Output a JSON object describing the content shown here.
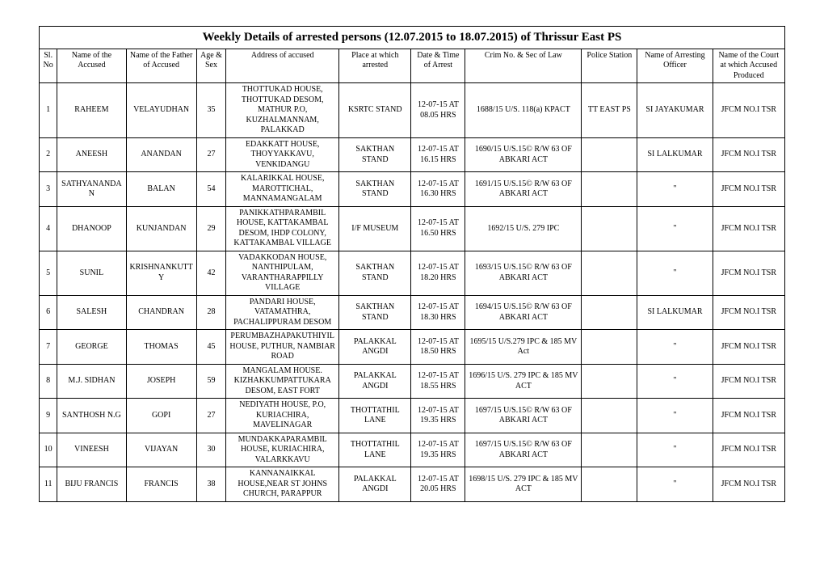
{
  "title": "Weekly Details of  arrested persons  (12.07.2015 to 18.07.2015) of Thrissur East PS",
  "columns": [
    "Sl. No",
    "Name of the Accused",
    "Name of the Father of Accused",
    "Age & Sex",
    "Address of accused",
    "Place at which arrested",
    "Date & Time of Arrest",
    "Crim No. & Sec of Law",
    "Police Station",
    "Name of Arresting Officer",
    "Name of the Court at which Accused Produced"
  ],
  "rows": [
    {
      "sl": "1",
      "name": "RAHEEM",
      "father": "VELAYUDHAN",
      "age": "35",
      "addr": "THOTTUKAD HOUSE, THOTTUKAD DESOM, MATHUR P.O, KUZHALMANNAM, PALAKKAD",
      "place": "KSRTC STAND",
      "datetime": "12-07-15 AT 08.05 HRS",
      "crime": "1688/15 U/S. 118(a) KPACT",
      "ps": "TT EAST PS",
      "officer": "SI JAYAKUMAR",
      "court": "JFCM NO.I TSR"
    },
    {
      "sl": "2",
      "name": "ANEESH",
      "father": "ANANDAN",
      "age": "27",
      "addr": "EDAKKATT HOUSE, THOYYAKKAVU, VENKIDANGU",
      "place": "SAKTHAN STAND",
      "datetime": "12-07-15 AT 16.15 HRS",
      "crime": "1690/15 U/S.15© R/W 63 OF ABKARI ACT",
      "ps": "",
      "officer": "SI LALKUMAR",
      "court": "JFCM NO.I TSR"
    },
    {
      "sl": "3",
      "name": "SATHYANANDAN",
      "father": "BALAN",
      "age": "54",
      "addr": "KALARIKKAL HOUSE, MAROTTICHAL, MANNAMANGALAM",
      "place": "SAKTHAN STAND",
      "datetime": "12-07-15 AT 16.30 HRS",
      "crime": "1691/15 U/S.15© R/W 63 OF ABKARI ACT",
      "ps": "",
      "officer": "\"",
      "court": "JFCM NO.I TSR"
    },
    {
      "sl": "4",
      "name": "DHANOOP",
      "father": "KUNJANDAN",
      "age": "29",
      "addr": "PANIKKATHPARAMBIL HOUSE, KATTAKAMBAL DESOM, IHDP COLONY, KATTAKAMBAL VILLAGE",
      "place": "I/F MUSEUM",
      "datetime": "12-07-15 AT 16.50 HRS",
      "crime": "1692/15 U/S. 279 IPC",
      "ps": "",
      "officer": "\"",
      "court": "JFCM NO.I TSR"
    },
    {
      "sl": "5",
      "name": "SUNIL",
      "father": "KRISHNANKUTTY",
      "age": "42",
      "addr": "VADAKKODAN HOUSE, NANTHIPULAM, VARANTHARAPPILLY VILLAGE",
      "place": "SAKTHAN STAND",
      "datetime": "12-07-15 AT 18.20 HRS",
      "crime": "1693/15 U/S.15© R/W 63 OF ABKARI ACT",
      "ps": "",
      "officer": "\"",
      "court": "JFCM NO.I TSR"
    },
    {
      "sl": "6",
      "name": "SALESH",
      "father": "CHANDRAN",
      "age": "28",
      "addr": "PANDARI HOUSE, VATAMATHRA, PACHALIPPURAM DESOM",
      "place": "SAKTHAN STAND",
      "datetime": "12-07-15 AT 18.30 HRS",
      "crime": "1694/15 U/S.15© R/W 63 OF ABKARI ACT",
      "ps": "",
      "officer": "SI LALKUMAR",
      "court": "JFCM NO.I TSR"
    },
    {
      "sl": "7",
      "name": "GEORGE",
      "father": "THOMAS",
      "age": "45",
      "addr": "PERUMBAZHAPAKUTHIYIL HOUSE, PUTHUR, NAMBIAR ROAD",
      "place": "PALAKKAL ANGDI",
      "datetime": "12-07-15 AT 18.50 HRS",
      "crime": "1695/15 U/S.279 IPC & 185 MV Act",
      "ps": "",
      "officer": "\"",
      "court": "JFCM NO.I TSR"
    },
    {
      "sl": "8",
      "name": "M.J. SIDHAN",
      "father": "JOSEPH",
      "age": "59",
      "addr": "MANGALAM HOUSE. KIZHAKKUMPATTUKARA DESOM, EAST FORT",
      "place": "PALAKKAL ANGDI",
      "datetime": "12-07-15 AT 18.55 HRS",
      "crime": "1696/15 U/S. 279 IPC & 185 MV ACT",
      "ps": "",
      "officer": "\"",
      "court": "JFCM NO.I TSR"
    },
    {
      "sl": "9",
      "name": "SANTHOSH N.G",
      "father": "GOPI",
      "age": "27",
      "addr": "NEDIYATH HOUSE, P.O, KURIACHIRA, MAVELINAGAR",
      "place": "THOTTATHIL LANE",
      "datetime": "12-07-15 AT 19.35 HRS",
      "crime": "1697/15 U/S.15© R/W 63 OF ABKARI ACT",
      "ps": "",
      "officer": "\"",
      "court": "JFCM NO.I TSR"
    },
    {
      "sl": "10",
      "name": "VINEESH",
      "father": "VIJAYAN",
      "age": "30",
      "addr": "MUNDAKKAPARAMBIL HOUSE, KURIACHIRA, VALARKKAVU",
      "place": "THOTTATHIL LANE",
      "datetime": "12-07-15 AT 19.35 HRS",
      "crime": "1697/15 U/S.15© R/W 63 OF ABKARI ACT",
      "ps": "",
      "officer": "\"",
      "court": "JFCM NO.I TSR"
    },
    {
      "sl": "11",
      "name": "BIJU FRANCIS",
      "father": "FRANCIS",
      "age": "38",
      "addr": "KANNANAIKKAL HOUSE,NEAR ST JOHNS CHURCH, PARAPPUR",
      "place": "PALAKKAL ANGDI",
      "datetime": "12-07-15 AT 20.05 HRS",
      "crime": "1698/15 U/S. 279 IPC & 185 MV ACT",
      "ps": "",
      "officer": "\"",
      "court": "JFCM NO.I TSR"
    }
  ]
}
